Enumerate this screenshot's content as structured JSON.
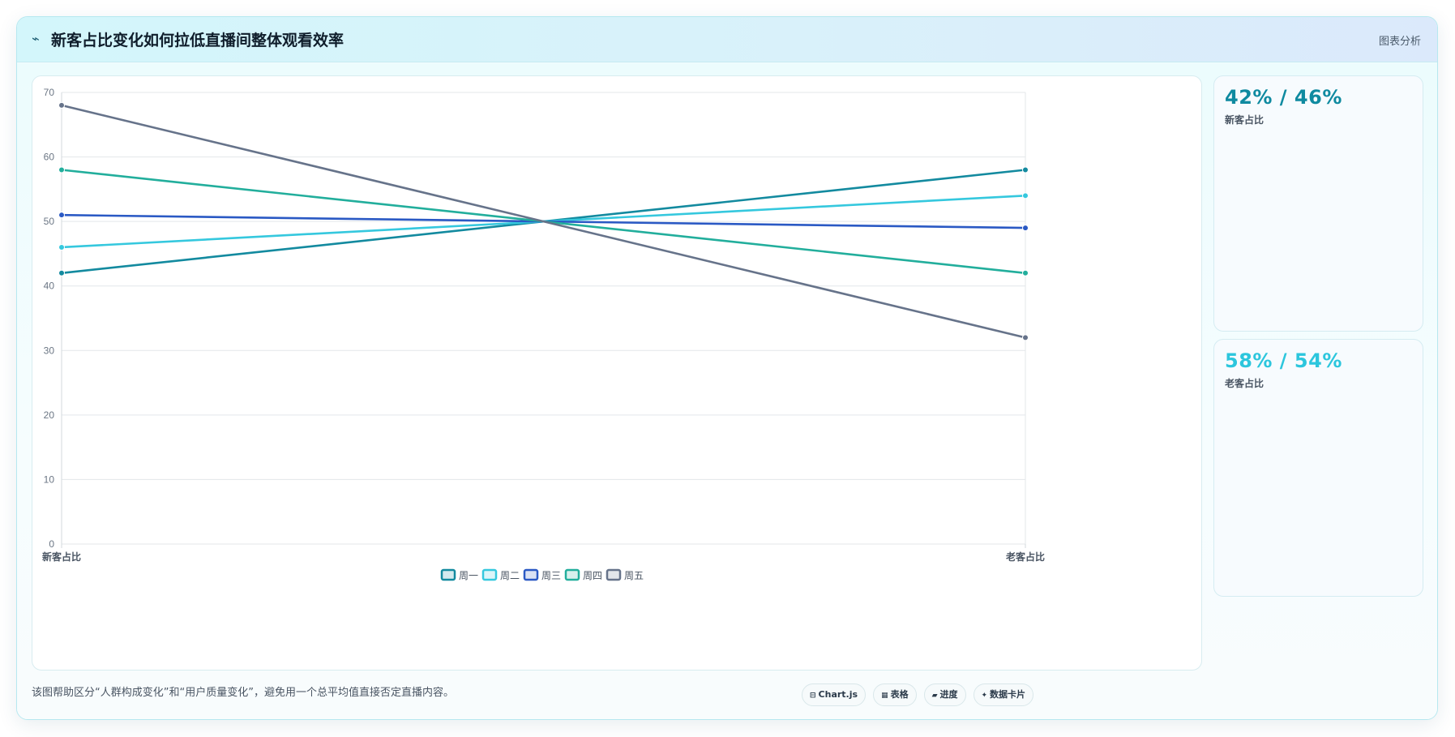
{
  "header": {
    "icon": "⌁",
    "title": "新客占比变化如何拉低直播间整体观看效率",
    "tag": "图表分析"
  },
  "stats": [
    {
      "value": "42% / 46%",
      "label": "新客占比",
      "color": "#0f8aa0"
    },
    {
      "value": "58% / 54%",
      "label": "老客占比",
      "color": "#2cc6dd"
    }
  ],
  "footer": {
    "note": "该图帮助区分“人群构成变化”和“用户质量变化”，避免用一个总平均值直接否定直播内容。",
    "pills": [
      {
        "icon": "⊟",
        "label": "Chart.js"
      },
      {
        "icon": "▦",
        "label": "表格"
      },
      {
        "icon": "▰",
        "label": "进度"
      },
      {
        "icon": "✦",
        "label": "数据卡片"
      }
    ]
  },
  "chart_data": {
    "type": "line",
    "categories": [
      "新客占比",
      "老客占比"
    ],
    "ylim": [
      0,
      70
    ],
    "yticks": [
      0,
      10,
      20,
      30,
      40,
      50,
      60,
      70
    ],
    "grid": true,
    "legend_position": "bottom",
    "series": [
      {
        "name": "周一",
        "values": [
          42,
          58
        ],
        "color": "#138a9f"
      },
      {
        "name": "周二",
        "values": [
          46,
          54
        ],
        "color": "#35c8de"
      },
      {
        "name": "周三",
        "values": [
          51,
          49
        ],
        "color": "#2a59c4"
      },
      {
        "name": "周四",
        "values": [
          58,
          42
        ],
        "color": "#22ae9c"
      },
      {
        "name": "周五",
        "values": [
          68,
          32
        ],
        "color": "#66738a"
      }
    ]
  }
}
